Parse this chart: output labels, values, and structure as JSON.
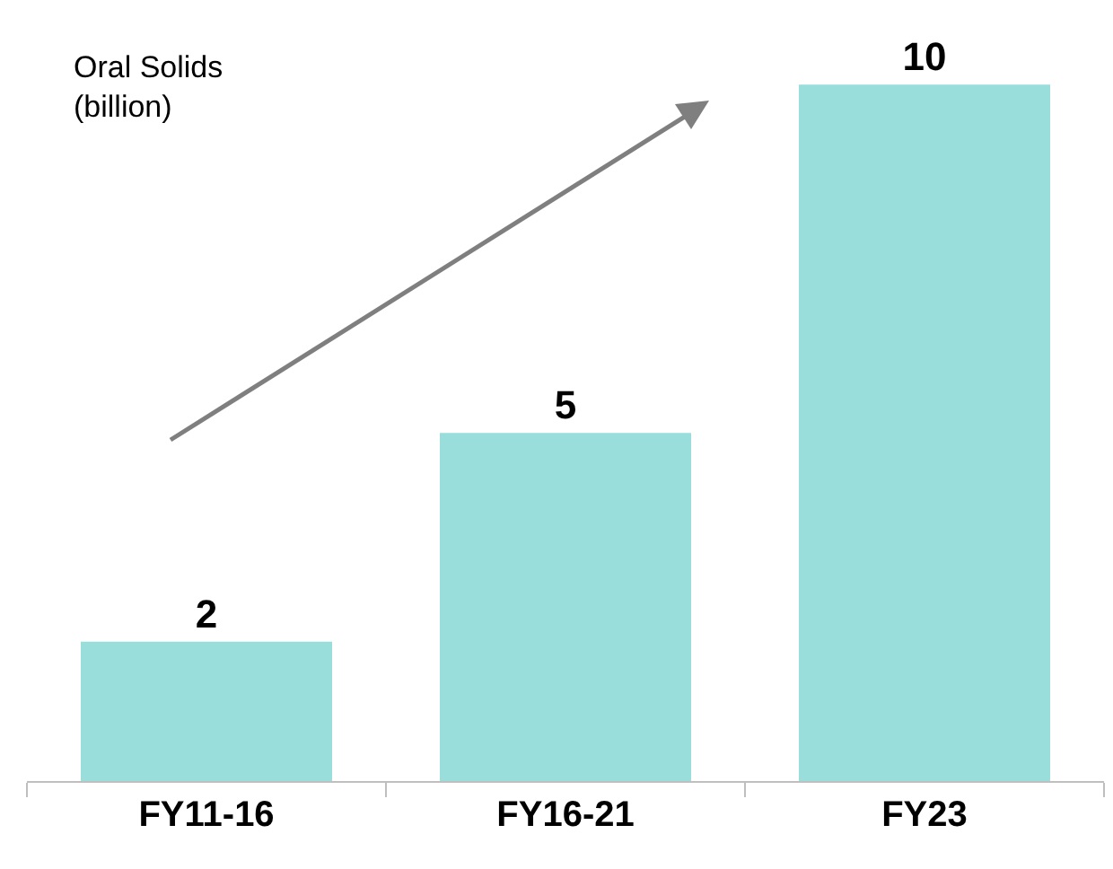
{
  "chart_data": {
    "type": "bar",
    "ylabel": "Oral Solids\n(billion)",
    "categories": [
      "FY11-16",
      "FY16-21",
      "FY23"
    ],
    "values": [
      2,
      5,
      10
    ],
    "color": "#99dedb",
    "data_labels": true
  }
}
